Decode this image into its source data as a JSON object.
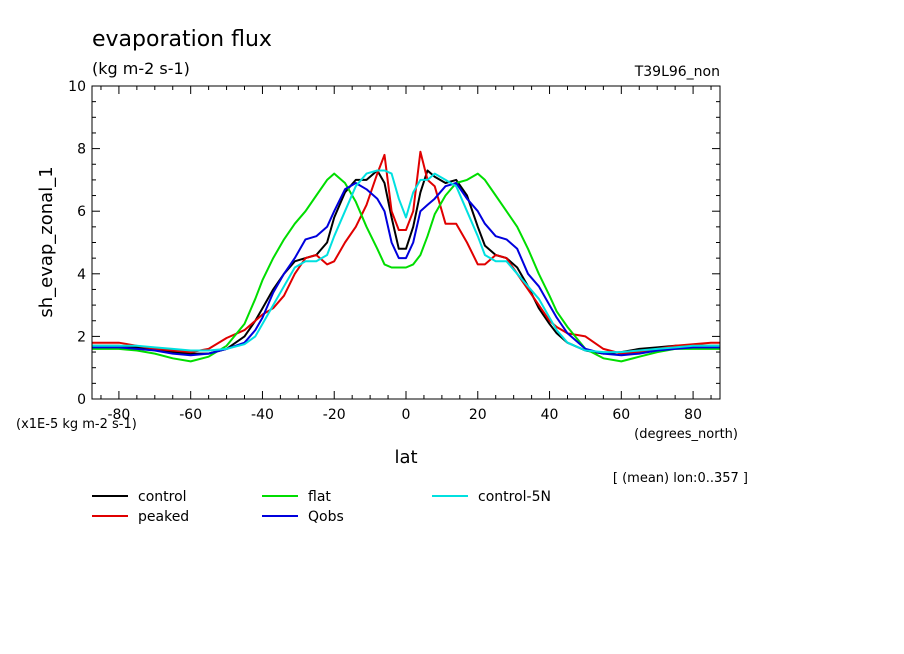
{
  "chart_data": {
    "type": "line",
    "title": "evaporation flux",
    "units": "(kg m-2 s-1)",
    "run_label": "T39L96_non",
    "xlabel": "lat",
    "xunits": "(degrees_north)",
    "ylabel": "sh_evap_zonal_1",
    "yscale_note": "(x1E-5 kg m-2 s-1)",
    "footnote": "[ (mean) lon:0..357 ]",
    "xlim": [
      -87.5,
      87.5
    ],
    "ylim": [
      0,
      10
    ],
    "xticks": [
      -80,
      -60,
      -40,
      -20,
      0,
      20,
      40,
      60,
      80
    ],
    "yticks": [
      0,
      2,
      4,
      6,
      8,
      10
    ],
    "grid": false,
    "legend_placement": "below",
    "series": [
      {
        "name": "control",
        "color": "#000000",
        "x": [
          -87.5,
          -85,
          -80,
          -75,
          -70,
          -65,
          -60,
          -55,
          -50,
          -45,
          -42,
          -40,
          -37,
          -34,
          -31,
          -28,
          -25,
          -22,
          -20,
          -17,
          -14,
          -11,
          -8,
          -6,
          -4,
          -2,
          0,
          2,
          4,
          6,
          8,
          11,
          14,
          17,
          20,
          22,
          25,
          28,
          31,
          34,
          37,
          40,
          42,
          45,
          50,
          55,
          60,
          65,
          70,
          75,
          80,
          85,
          87.5
        ],
        "y": [
          1.7,
          1.7,
          1.7,
          1.65,
          1.6,
          1.5,
          1.45,
          1.45,
          1.6,
          2.0,
          2.5,
          2.9,
          3.5,
          4.0,
          4.4,
          4.5,
          4.6,
          5.0,
          5.8,
          6.6,
          7.0,
          7.0,
          7.3,
          6.9,
          5.8,
          4.8,
          4.8,
          5.5,
          6.6,
          7.3,
          7.1,
          6.9,
          7.0,
          6.5,
          5.5,
          4.9,
          4.6,
          4.5,
          4.2,
          3.6,
          2.9,
          2.4,
          2.1,
          1.8,
          1.55,
          1.45,
          1.5,
          1.6,
          1.65,
          1.7,
          1.7,
          1.7,
          1.7
        ]
      },
      {
        "name": "peaked",
        "color": "#e00000",
        "x": [
          -87.5,
          -85,
          -80,
          -75,
          -70,
          -65,
          -60,
          -55,
          -50,
          -45,
          -42,
          -40,
          -37,
          -34,
          -31,
          -28,
          -25,
          -22,
          -20,
          -17,
          -14,
          -11,
          -8,
          -6,
          -4,
          -2,
          0,
          2,
          4,
          6,
          8,
          11,
          14,
          17,
          20,
          22,
          25,
          28,
          31,
          34,
          37,
          40,
          42,
          45,
          50,
          55,
          60,
          65,
          70,
          75,
          80,
          85,
          87.5
        ],
        "y": [
          1.8,
          1.8,
          1.8,
          1.7,
          1.6,
          1.55,
          1.5,
          1.6,
          1.95,
          2.2,
          2.5,
          2.7,
          2.9,
          3.3,
          4.0,
          4.5,
          4.6,
          4.3,
          4.4,
          5.0,
          5.5,
          6.2,
          7.2,
          7.8,
          6.0,
          5.4,
          5.4,
          6.0,
          7.9,
          7.0,
          6.8,
          5.6,
          5.6,
          5.0,
          4.3,
          4.3,
          4.6,
          4.5,
          4.0,
          3.5,
          3.0,
          2.5,
          2.3,
          2.1,
          2.0,
          1.6,
          1.45,
          1.5,
          1.6,
          1.7,
          1.75,
          1.8,
          1.8
        ]
      },
      {
        "name": "flat",
        "color": "#00dd00",
        "x": [
          -87.5,
          -85,
          -80,
          -75,
          -70,
          -65,
          -60,
          -55,
          -50,
          -45,
          -42,
          -40,
          -37,
          -34,
          -31,
          -28,
          -25,
          -22,
          -20,
          -17,
          -14,
          -11,
          -8,
          -6,
          -4,
          -2,
          0,
          2,
          4,
          6,
          8,
          11,
          14,
          17,
          20,
          22,
          25,
          28,
          31,
          34,
          37,
          40,
          42,
          45,
          50,
          55,
          60,
          65,
          70,
          75,
          80,
          85,
          87.5
        ],
        "y": [
          1.6,
          1.6,
          1.6,
          1.55,
          1.45,
          1.3,
          1.2,
          1.35,
          1.7,
          2.4,
          3.2,
          3.8,
          4.5,
          5.1,
          5.6,
          6.0,
          6.5,
          7.0,
          7.2,
          6.9,
          6.3,
          5.5,
          4.8,
          4.3,
          4.2,
          4.2,
          4.2,
          4.3,
          4.6,
          5.2,
          5.9,
          6.5,
          6.9,
          7.0,
          7.2,
          7.0,
          6.5,
          6.0,
          5.5,
          4.8,
          4.0,
          3.3,
          2.8,
          2.3,
          1.6,
          1.3,
          1.2,
          1.35,
          1.5,
          1.6,
          1.6,
          1.6,
          1.6
        ]
      },
      {
        "name": "Qobs",
        "color": "#0000dd",
        "x": [
          -87.5,
          -85,
          -80,
          -75,
          -70,
          -65,
          -60,
          -55,
          -50,
          -45,
          -42,
          -40,
          -37,
          -34,
          -31,
          -28,
          -25,
          -22,
          -20,
          -17,
          -14,
          -11,
          -8,
          -6,
          -4,
          -2,
          0,
          2,
          4,
          6,
          8,
          11,
          14,
          17,
          20,
          22,
          25,
          28,
          31,
          34,
          37,
          40,
          42,
          45,
          50,
          55,
          60,
          65,
          70,
          75,
          80,
          85,
          87.5
        ],
        "y": [
          1.65,
          1.65,
          1.65,
          1.6,
          1.55,
          1.45,
          1.4,
          1.45,
          1.6,
          1.8,
          2.2,
          2.6,
          3.4,
          4.0,
          4.5,
          5.1,
          5.2,
          5.5,
          6.0,
          6.7,
          6.9,
          6.7,
          6.4,
          6.0,
          5.0,
          4.5,
          4.5,
          5.0,
          6.0,
          6.2,
          6.4,
          6.8,
          6.9,
          6.4,
          6.0,
          5.6,
          5.2,
          5.1,
          4.8,
          4.0,
          3.6,
          3.0,
          2.6,
          2.1,
          1.6,
          1.45,
          1.4,
          1.45,
          1.55,
          1.6,
          1.65,
          1.65,
          1.65
        ]
      },
      {
        "name": "control-5N",
        "color": "#00e0e0",
        "x": [
          -87.5,
          -85,
          -80,
          -75,
          -70,
          -65,
          -60,
          -55,
          -50,
          -45,
          -42,
          -40,
          -37,
          -34,
          -31,
          -28,
          -25,
          -22,
          -20,
          -17,
          -14,
          -11,
          -8,
          -6,
          -4,
          -2,
          0,
          2,
          4,
          6,
          8,
          11,
          14,
          17,
          20,
          22,
          25,
          28,
          31,
          34,
          37,
          40,
          42,
          45,
          50,
          55,
          60,
          65,
          70,
          75,
          80,
          85,
          87.5
        ],
        "y": [
          1.7,
          1.7,
          1.7,
          1.7,
          1.65,
          1.6,
          1.55,
          1.55,
          1.6,
          1.75,
          2.0,
          2.4,
          3.0,
          3.6,
          4.2,
          4.4,
          4.4,
          4.6,
          5.2,
          6.0,
          6.8,
          7.2,
          7.3,
          7.3,
          7.2,
          6.4,
          5.8,
          6.6,
          7.0,
          7.0,
          7.2,
          7.0,
          6.8,
          6.0,
          5.2,
          4.6,
          4.4,
          4.4,
          4.0,
          3.6,
          3.2,
          2.6,
          2.2,
          1.8,
          1.55,
          1.5,
          1.5,
          1.55,
          1.6,
          1.65,
          1.7,
          1.7,
          1.7
        ]
      }
    ]
  }
}
